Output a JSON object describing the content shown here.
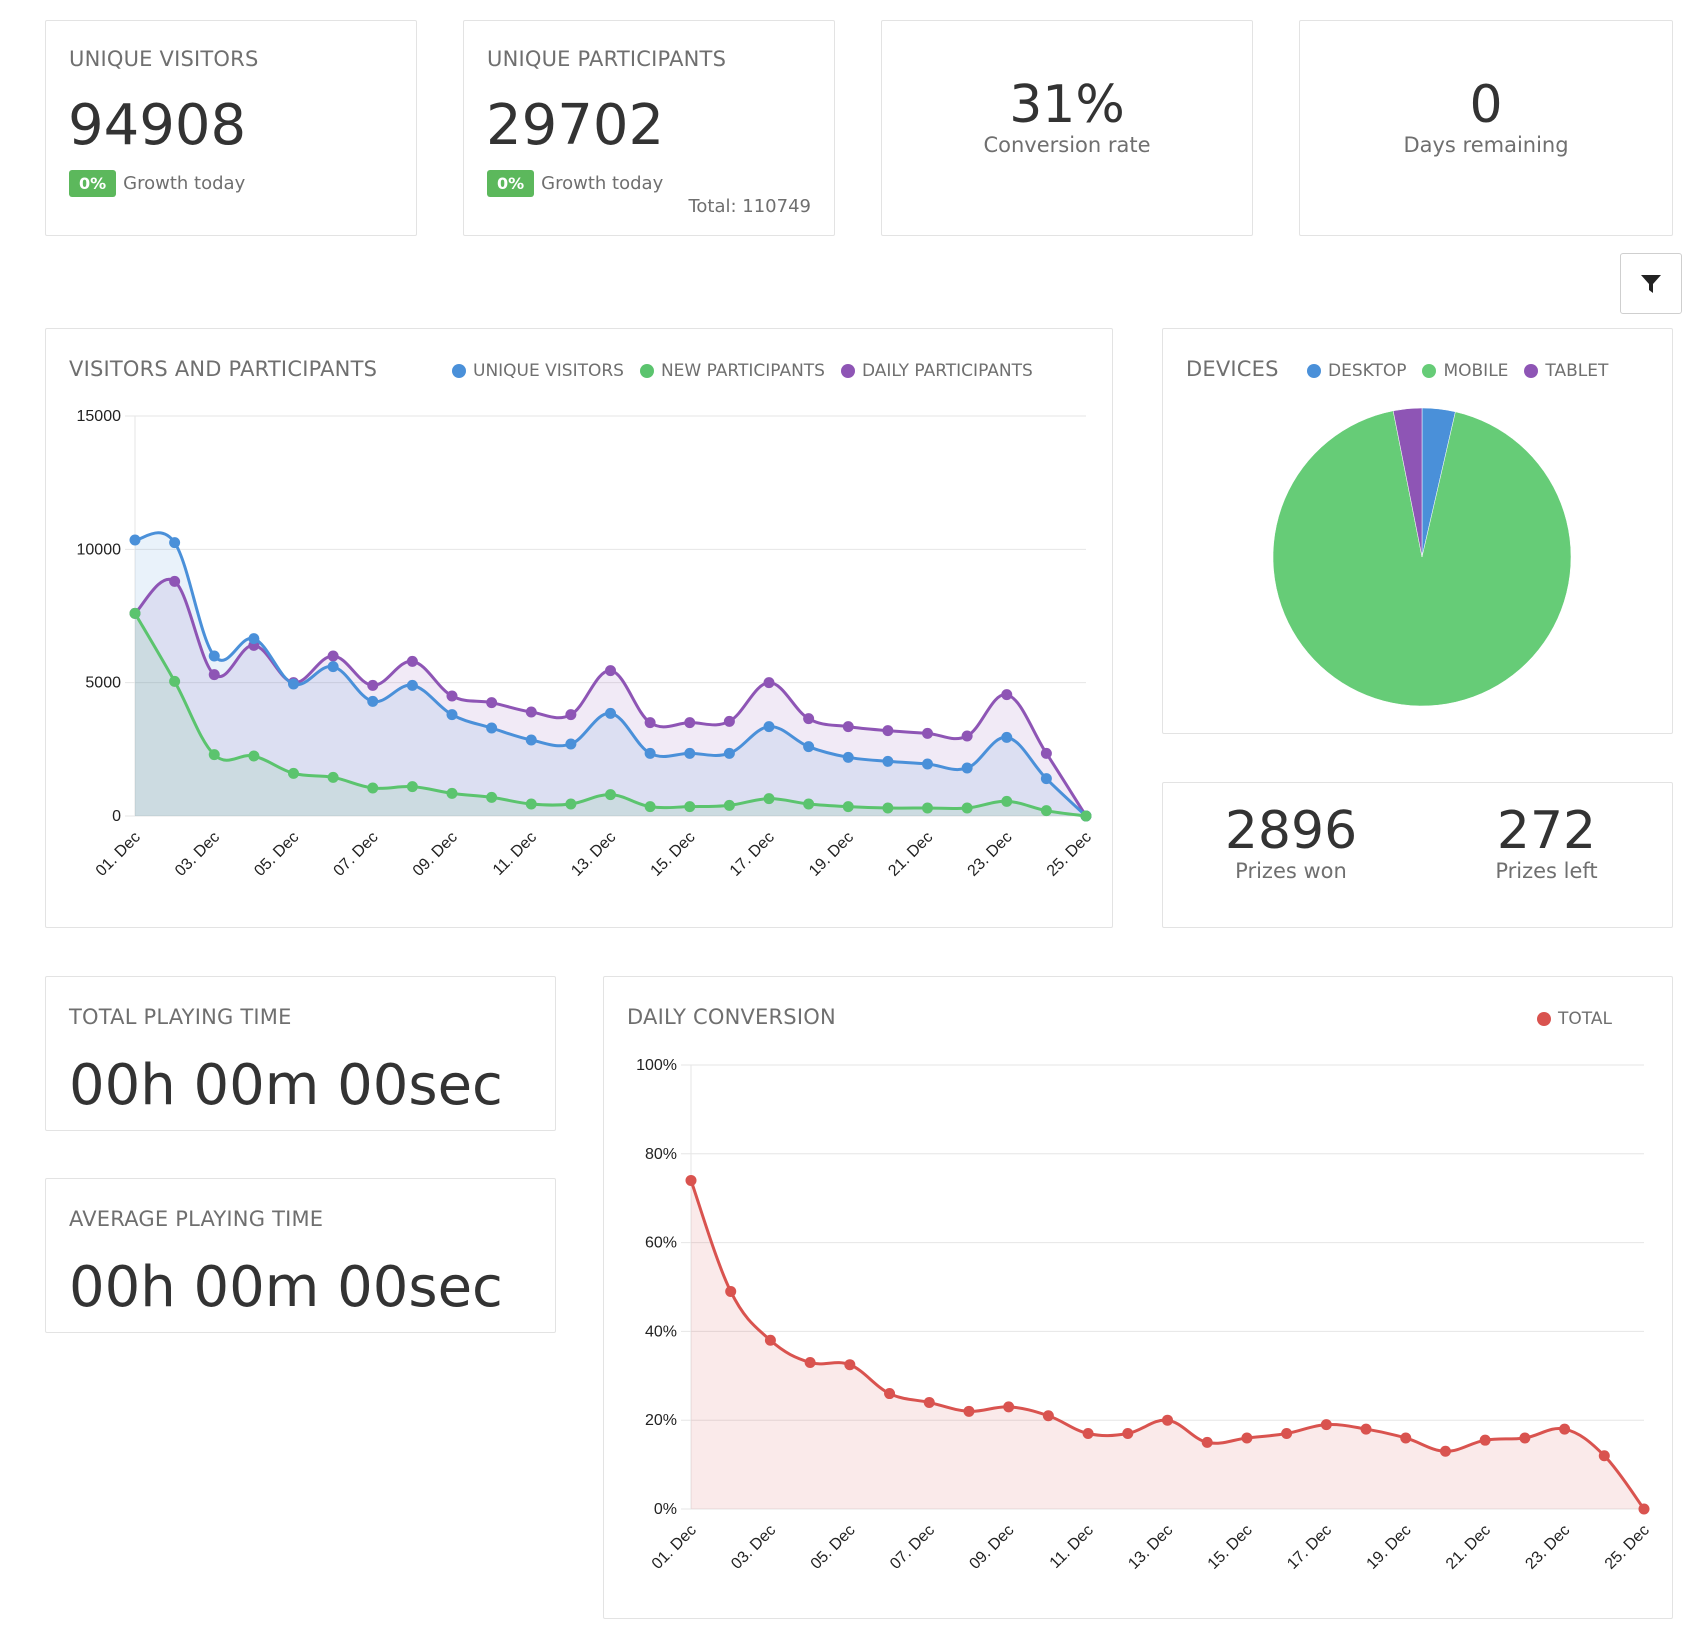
{
  "cards": {
    "unique_visitors": {
      "title": "UNIQUE VISITORS",
      "value": "94908",
      "badge": "0%",
      "badge_label": "Growth today"
    },
    "unique_participants": {
      "title": "UNIQUE PARTICIPANTS",
      "value": "29702",
      "badge": "0%",
      "badge_label": "Growth today",
      "total": "Total: 110749"
    },
    "conversion": {
      "value": "31%",
      "label": "Conversion rate"
    },
    "days_remaining": {
      "value": "0",
      "label": "Days remaining"
    }
  },
  "filter_button": {
    "icon": "filter-icon"
  },
  "visitors_chart": {
    "title": "VISITORS AND PARTICIPANTS",
    "legend": [
      {
        "label": "UNIQUE VISITORS",
        "color": "#4a90d9"
      },
      {
        "label": "NEW PARTICIPANTS",
        "color": "#5bc46e"
      },
      {
        "label": "DAILY PARTICIPANTS",
        "color": "#8e55b5"
      }
    ]
  },
  "devices_chart": {
    "title": "DEVICES",
    "legend": [
      {
        "label": "DESKTOP",
        "color": "#4a90d9"
      },
      {
        "label": "MOBILE",
        "color": "#66cc77"
      },
      {
        "label": "TABLET",
        "color": "#8e55b5"
      }
    ]
  },
  "prizes": {
    "won_value": "2896",
    "won_label": "Prizes won",
    "left_value": "272",
    "left_label": "Prizes left"
  },
  "total_playing_time": {
    "title": "TOTAL PLAYING TIME",
    "value": "00h 00m 00sec"
  },
  "average_playing_time": {
    "title": "AVERAGE PLAYING TIME",
    "value": "00h 00m 00sec"
  },
  "conversion_chart": {
    "title": "DAILY CONVERSION",
    "legend": [
      {
        "label": "TOTAL",
        "color": "#d9534f"
      }
    ]
  },
  "chart_data": [
    {
      "type": "area",
      "title": "VISITORS AND PARTICIPANTS",
      "x": [
        "01. Dec",
        "02. Dec",
        "03. Dec",
        "04. Dec",
        "05. Dec",
        "06. Dec",
        "07. Dec",
        "08. Dec",
        "09. Dec",
        "10. Dec",
        "11. Dec",
        "12. Dec",
        "13. Dec",
        "14. Dec",
        "15. Dec",
        "16. Dec",
        "17. Dec",
        "18. Dec",
        "19. Dec",
        "20. Dec",
        "21. Dec",
        "22. Dec",
        "23. Dec",
        "24. Dec",
        "25. Dec"
      ],
      "tick_labels": [
        "01. Dec",
        "03. Dec",
        "05. Dec",
        "07. Dec",
        "09. Dec",
        "11. Dec",
        "13. Dec",
        "15. Dec",
        "17. Dec",
        "19. Dec",
        "21. Dec",
        "23. Dec",
        "25. Dec"
      ],
      "y_ticks": [
        "0",
        "5000",
        "10000",
        "15000"
      ],
      "ylim": [
        0,
        15000
      ],
      "grid": true,
      "legend_position": "top-right",
      "series": [
        {
          "name": "UNIQUE VISITORS",
          "color": "#4a90d9",
          "values": [
            10350,
            10250,
            6000,
            6650,
            4950,
            5600,
            4300,
            4900,
            3800,
            3300,
            2850,
            2700,
            3850,
            2350,
            2350,
            2350,
            3350,
            2600,
            2200,
            2050,
            1950,
            1800,
            2950,
            1400,
            0
          ]
        },
        {
          "name": "NEW PARTICIPANTS",
          "color": "#5bc46e",
          "values": [
            7600,
            5050,
            2300,
            2250,
            1600,
            1450,
            1050,
            1100,
            850,
            700,
            450,
            450,
            800,
            350,
            350,
            400,
            650,
            450,
            350,
            300,
            300,
            300,
            550,
            200,
            0
          ]
        },
        {
          "name": "DAILY PARTICIPANTS",
          "color": "#8e55b5",
          "values": [
            7600,
            8800,
            5300,
            6400,
            5000,
            6000,
            4900,
            5800,
            4500,
            4250,
            3900,
            3800,
            5450,
            3500,
            3500,
            3550,
            5000,
            3650,
            3350,
            3200,
            3100,
            3000,
            4550,
            2350,
            0
          ]
        }
      ]
    },
    {
      "type": "pie",
      "title": "DEVICES",
      "legend_position": "top",
      "slices": [
        {
          "label": "DESKTOP",
          "value": 3.6,
          "color": "#4a90d9"
        },
        {
          "label": "MOBILE",
          "value": 93.3,
          "color": "#66cc77"
        },
        {
          "label": "TABLET",
          "value": 3.1,
          "color": "#8e55b5"
        }
      ]
    },
    {
      "type": "area",
      "title": "DAILY CONVERSION",
      "x": [
        "01. Dec",
        "02. Dec",
        "03. Dec",
        "04. Dec",
        "05. Dec",
        "06. Dec",
        "07. Dec",
        "08. Dec",
        "09. Dec",
        "10. Dec",
        "11. Dec",
        "12. Dec",
        "13. Dec",
        "14. Dec",
        "15. Dec",
        "16. Dec",
        "17. Dec",
        "18. Dec",
        "19. Dec",
        "20. Dec",
        "21. Dec",
        "22. Dec",
        "23. Dec",
        "24. Dec",
        "25. Dec"
      ],
      "tick_labels": [
        "01. Dec",
        "03. Dec",
        "05. Dec",
        "07. Dec",
        "09. Dec",
        "11. Dec",
        "13. Dec",
        "15. Dec",
        "17. Dec",
        "19. Dec",
        "21. Dec",
        "23. Dec",
        "25. Dec"
      ],
      "y_ticks": [
        "0%",
        "20%",
        "40%",
        "60%",
        "80%",
        "100%"
      ],
      "ylim": [
        0,
        100
      ],
      "grid": true,
      "legend_position": "top-right",
      "series": [
        {
          "name": "TOTAL",
          "color": "#d9534f",
          "values": [
            74,
            49,
            38,
            33,
            32.5,
            26,
            24,
            22,
            23,
            21,
            17,
            17,
            20,
            15,
            16,
            17,
            19,
            18,
            16,
            13,
            15.5,
            16,
            18,
            12,
            0
          ]
        }
      ]
    }
  ]
}
